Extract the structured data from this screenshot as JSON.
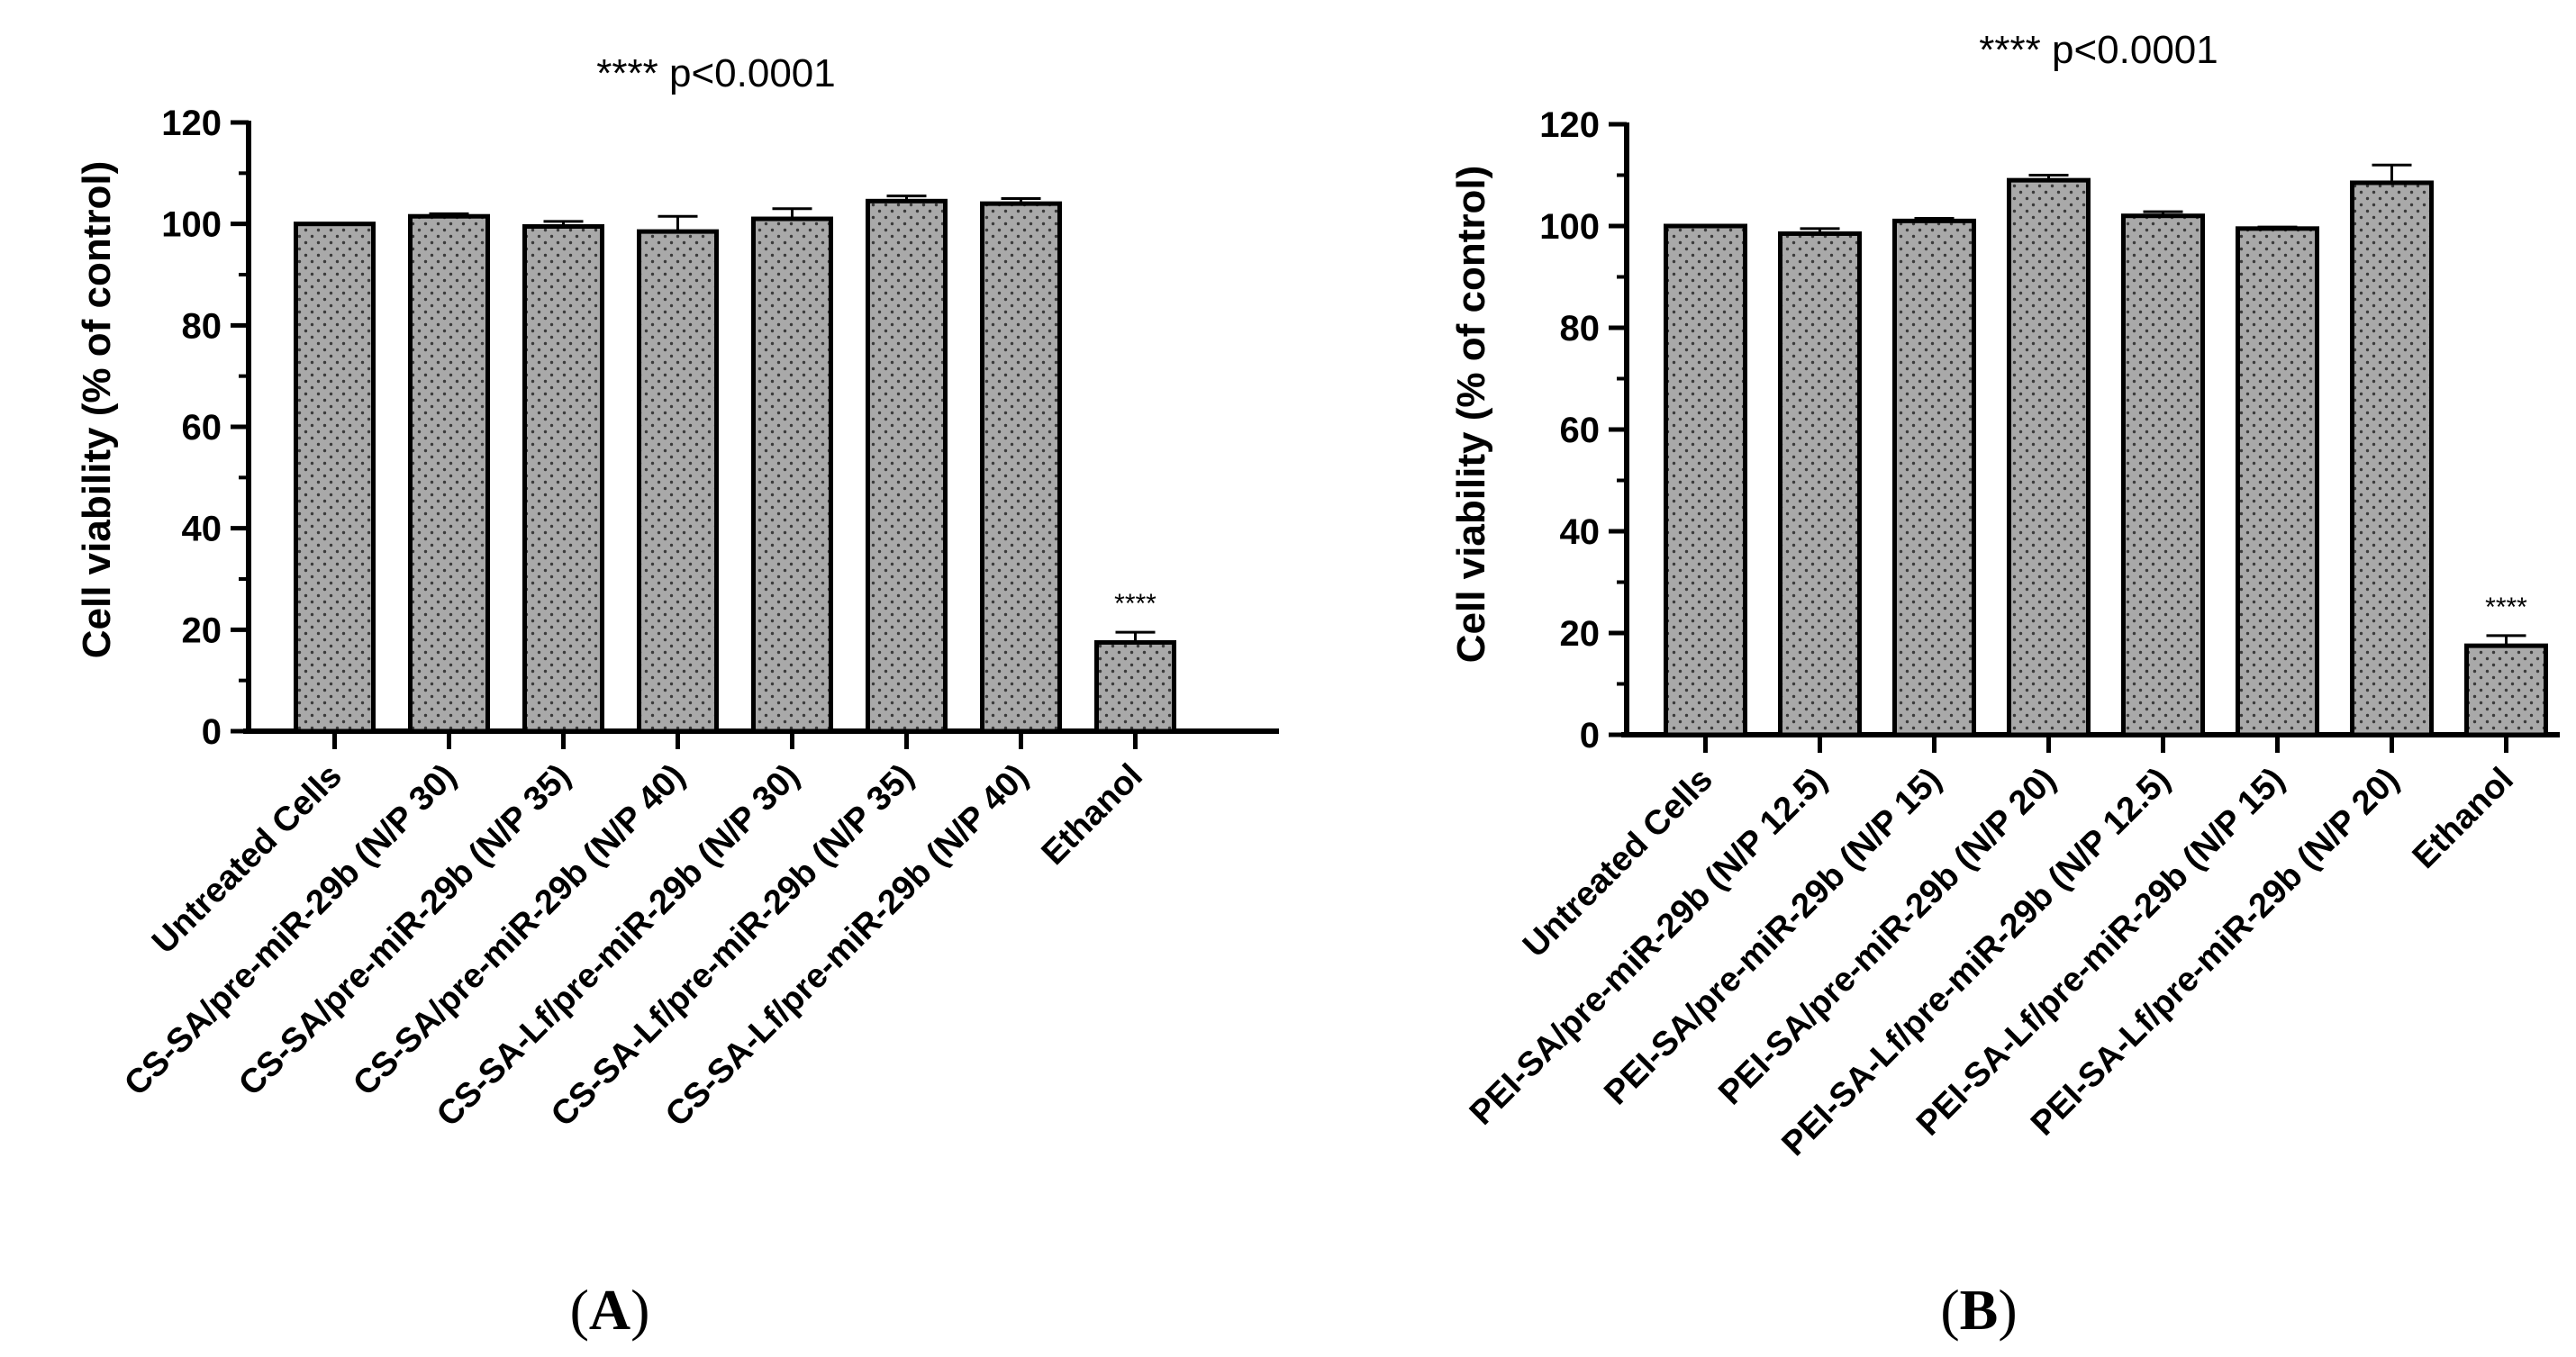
{
  "chart_data": [
    {
      "type": "bar",
      "panel": "A",
      "title": "**** p<0.0001",
      "ylabel": "Cell viability (% of control)",
      "ylim": [
        0,
        120
      ],
      "yticks": [
        0,
        20,
        40,
        60,
        80,
        100,
        120
      ],
      "categories": [
        "Untreated Cells",
        "CS-SA/pre-miR-29b (N/P 30)",
        "CS-SA/pre-miR-29b (N/P 35)",
        "CS-SA/pre-miR-29b (N/P 40)",
        "CS-SA-Lf/pre-miR-29b (N/P 30)",
        "CS-SA-Lf/pre-miR-29b (N/P 35)",
        "CS-SA-Lf/pre-miR-29b (N/P 40)",
        "Ethanol"
      ],
      "values": [
        100,
        101.5,
        99.5,
        98.5,
        101,
        104.5,
        104,
        17.5
      ],
      "errors": [
        0,
        0.5,
        1,
        3,
        2,
        1,
        1,
        2
      ],
      "annotations": [
        {
          "category_index": 7,
          "text": "****"
        }
      ],
      "legend": "none",
      "grid": false
    },
    {
      "type": "bar",
      "panel": "B",
      "title": "**** p<0.0001",
      "ylabel": "Cell viability (% of control)",
      "ylim": [
        0,
        120
      ],
      "yticks": [
        0,
        20,
        40,
        60,
        80,
        100,
        120
      ],
      "categories": [
        "Untreated Cells",
        "PEI-SA/pre-miR-29b (N/P 12.5)",
        "PEI-SA/pre-miR-29b (N/P 15)",
        "PEI-SA/pre-miR-29b (N/P 20)",
        "PEI-SA-Lf/pre-miR-29b (N/P 12.5)",
        "PEI-SA-Lf/pre-miR-29b (N/P 15)",
        "PEI-SA-Lf/pre-miR-29b (N/P 20)",
        "Ethanol"
      ],
      "values": [
        100,
        98.5,
        101,
        109,
        102,
        99.5,
        108.5,
        17.5
      ],
      "errors": [
        0,
        1,
        0.5,
        1,
        0.8,
        0.3,
        3.5,
        2
      ],
      "annotations": [
        {
          "category_index": 7,
          "text": "****"
        }
      ],
      "legend": "none",
      "grid": false
    }
  ],
  "panels": [
    {
      "open": "(",
      "letter": "A",
      "close": ")"
    },
    {
      "open": "(",
      "letter": "B",
      "close": ")"
    }
  ],
  "colors": {
    "bar_fill": "#a9a9a9",
    "bar_dots": "#3a3a3a",
    "stroke": "#000000"
  }
}
